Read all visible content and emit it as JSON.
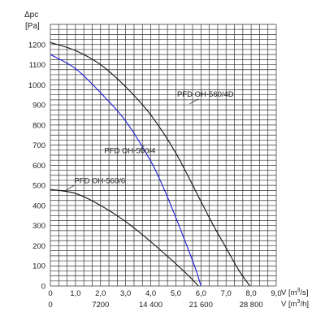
{
  "chart_data": {
    "type": "line",
    "ylabel_top": "Δpc",
    "ylabel_unit": "[Pa]",
    "xlabel_primary": "V [m",
    "xlabel_primary_sup": "3",
    "xlabel_primary_tail": "/s]",
    "xlabel_secondary": "V [m",
    "xlabel_secondary_sup": "3",
    "xlabel_secondary_tail": "/h]",
    "xlim": [
      0,
      9
    ],
    "ylim": [
      0,
      1300
    ],
    "x_ticks": [
      "0",
      "1,0",
      "2,0",
      "3,0",
      "4,0",
      "5,0",
      "6,0",
      "7,0",
      "8,0",
      "9,0"
    ],
    "x_ticks_h": [
      {
        "x": 0,
        "label": "0"
      },
      {
        "x": 2,
        "label": "7200"
      },
      {
        "x": 4,
        "label": "14 400"
      },
      {
        "x": 6,
        "label": "21 600"
      },
      {
        "x": 8,
        "label": "28 800"
      }
    ],
    "y_ticks": [
      "0",
      "100",
      "200",
      "300",
      "400",
      "500",
      "600",
      "700",
      "800",
      "900",
      "1000",
      "1100",
      "1200"
    ],
    "grid": true,
    "series": [
      {
        "name": "PFD OH-560/4D",
        "color": "#111111",
        "x": [
          0,
          1,
          2,
          3,
          4,
          5,
          6,
          6.5,
          7,
          7.5,
          7.95
        ],
        "y": [
          1210,
          1170,
          1100,
          990,
          850,
          660,
          420,
          300,
          190,
          80,
          0
        ]
      },
      {
        "name": "PFD OH-560/4",
        "color": "#1a1adb",
        "x": [
          0,
          1,
          2,
          3,
          4,
          4.5,
          5,
          5.5,
          5.8,
          6.0
        ],
        "y": [
          1150,
          1080,
          960,
          820,
          620,
          490,
          340,
          180,
          80,
          0
        ]
      },
      {
        "name": "PFD OH-560/6",
        "color": "#111111",
        "x": [
          0,
          1,
          2,
          3,
          4,
          5,
          5.6,
          5.9
        ],
        "y": [
          480,
          460,
          400,
          320,
          220,
          110,
          40,
          0
        ]
      }
    ]
  }
}
